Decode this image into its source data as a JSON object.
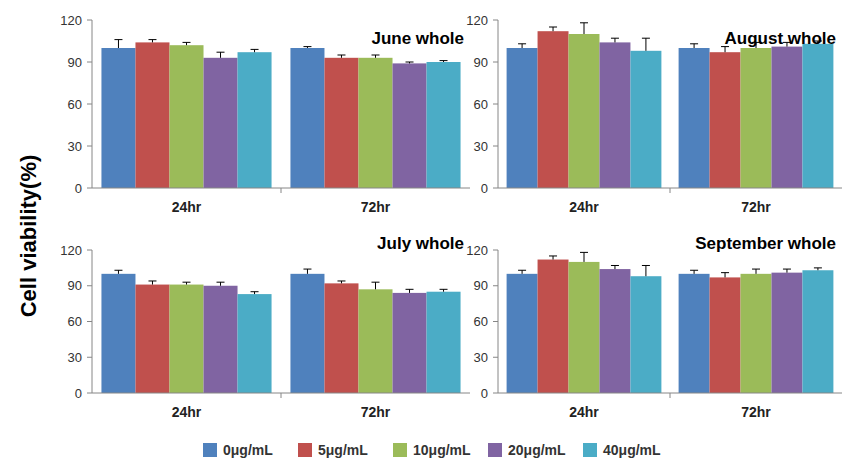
{
  "chart_data": [
    {
      "type": "bar",
      "title": "June whole",
      "y_label": "Cell viability(%)",
      "legend": "bottom",
      "categories": [
        "24hr",
        "72hr"
      ],
      "ylim": [
        0,
        120
      ],
      "yticks": [
        0,
        30,
        60,
        90,
        120
      ],
      "series": [
        {
          "name": "0μg/mL",
          "color": "#4f81bd",
          "values": [
            100,
            100
          ],
          "errors": [
            6,
            1
          ]
        },
        {
          "name": "5μg/mL",
          "color": "#c0504d",
          "values": [
            104,
            93
          ],
          "errors": [
            2,
            2
          ]
        },
        {
          "name": "10μg/mL",
          "color": "#9bbb59",
          "values": [
            102,
            93
          ],
          "errors": [
            2,
            2
          ]
        },
        {
          "name": "20μg/mL",
          "color": "#8064a2",
          "values": [
            93,
            89
          ],
          "errors": [
            4,
            1
          ]
        },
        {
          "name": "40μg/mL",
          "color": "#4bacc6",
          "values": [
            97,
            90
          ],
          "errors": [
            2,
            1
          ]
        }
      ]
    },
    {
      "type": "bar",
      "title": "August whole",
      "categories": [
        "24hr",
        "72hr"
      ],
      "ylim": [
        0,
        120
      ],
      "yticks": [
        0,
        30,
        60,
        90,
        120
      ],
      "series": [
        {
          "name": "0μg/mL",
          "color": "#4f81bd",
          "values": [
            100,
            100
          ],
          "errors": [
            3,
            3
          ]
        },
        {
          "name": "5μg/mL",
          "color": "#c0504d",
          "values": [
            112,
            97
          ],
          "errors": [
            3,
            4
          ]
        },
        {
          "name": "10μg/mL",
          "color": "#9bbb59",
          "values": [
            110,
            100
          ],
          "errors": [
            8,
            4
          ]
        },
        {
          "name": "20μg/mL",
          "color": "#8064a2",
          "values": [
            104,
            101
          ],
          "errors": [
            3,
            3
          ]
        },
        {
          "name": "40μg/mL",
          "color": "#4bacc6",
          "values": [
            98,
            103
          ],
          "errors": [
            9,
            2
          ]
        }
      ]
    },
    {
      "type": "bar",
      "title": "July whole",
      "categories": [
        "24hr",
        "72hr"
      ],
      "ylim": [
        0,
        120
      ],
      "yticks": [
        0,
        30,
        60,
        90,
        120
      ],
      "series": [
        {
          "name": "0μg/mL",
          "color": "#4f81bd",
          "values": [
            100,
            100
          ],
          "errors": [
            3,
            4
          ]
        },
        {
          "name": "5μg/mL",
          "color": "#c0504d",
          "values": [
            91,
            92
          ],
          "errors": [
            3,
            2
          ]
        },
        {
          "name": "10μg/mL",
          "color": "#9bbb59",
          "values": [
            91,
            87
          ],
          "errors": [
            2,
            6
          ]
        },
        {
          "name": "20μg/mL",
          "color": "#8064a2",
          "values": [
            90,
            84
          ],
          "errors": [
            3,
            3
          ]
        },
        {
          "name": "40μg/mL",
          "color": "#4bacc6",
          "values": [
            83,
            85
          ],
          "errors": [
            2,
            2
          ]
        }
      ]
    },
    {
      "type": "bar",
      "title": "September whole",
      "categories": [
        "24hr",
        "72hr"
      ],
      "ylim": [
        0,
        120
      ],
      "yticks": [
        0,
        30,
        60,
        90,
        120
      ],
      "series": [
        {
          "name": "0μg/mL",
          "color": "#4f81bd",
          "values": [
            100,
            100
          ],
          "errors": [
            3,
            3
          ]
        },
        {
          "name": "5μg/mL",
          "color": "#c0504d",
          "values": [
            112,
            97
          ],
          "errors": [
            3,
            4
          ]
        },
        {
          "name": "10μg/mL",
          "color": "#9bbb59",
          "values": [
            110,
            100
          ],
          "errors": [
            8,
            4
          ]
        },
        {
          "name": "20μg/mL",
          "color": "#8064a2",
          "values": [
            104,
            101
          ],
          "errors": [
            3,
            3
          ]
        },
        {
          "name": "40μg/mL",
          "color": "#4bacc6",
          "values": [
            98,
            103
          ],
          "errors": [
            9,
            2
          ]
        }
      ]
    }
  ]
}
